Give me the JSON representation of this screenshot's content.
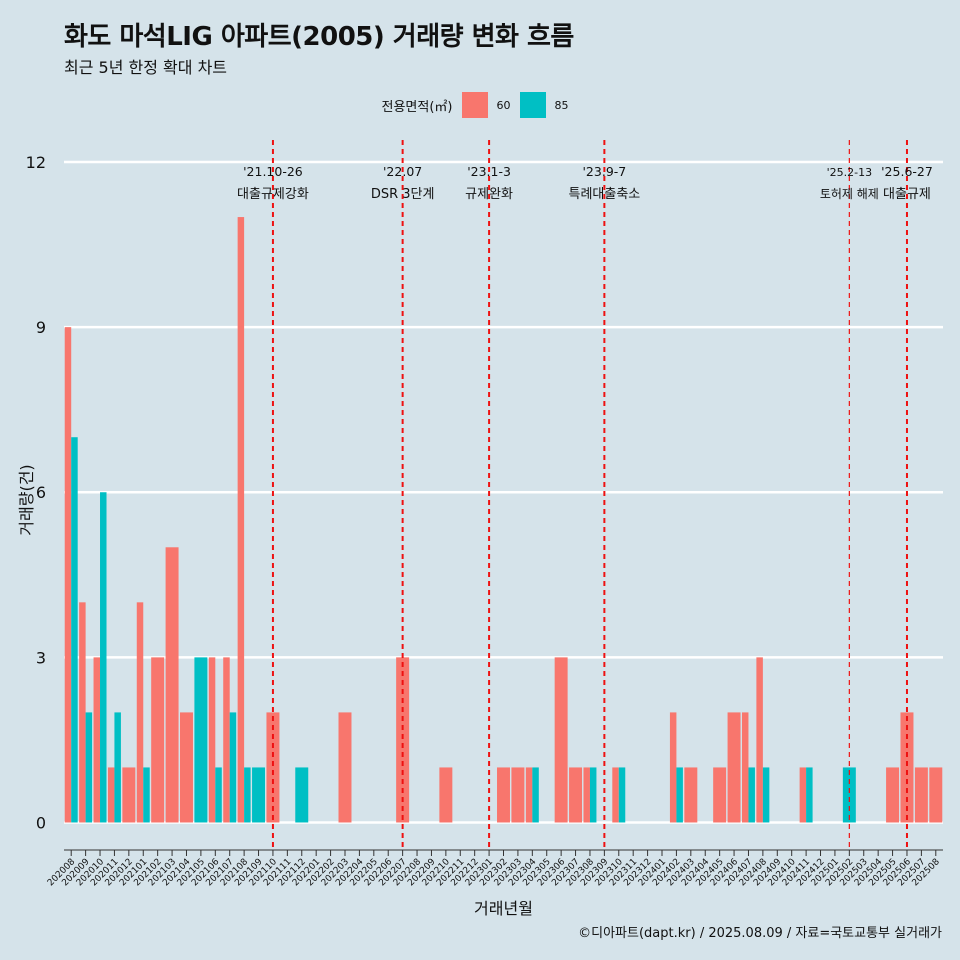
{
  "title": "화도 마석LIG 아파트(2005) 거래량 변화 흐름",
  "subtitle": "최근 5년 한정 확대 차트",
  "caption": "©디아파트(dapt.kr) / 2025.08.09 / 자료=국토교통부 실거래가",
  "legend": {
    "title": "전용면적(㎡)",
    "items": [
      {
        "label": "60",
        "color": "#f8766d"
      },
      {
        "label": "85",
        "color": "#00bfc4"
      }
    ]
  },
  "chart_data": {
    "type": "bar",
    "xlabel": "거래년월",
    "ylabel": "거래량(건)",
    "ylim": [
      -0.5,
      12.4
    ],
    "yticks": [
      0,
      3,
      6,
      9,
      12
    ],
    "grid": true,
    "legend_position": "top",
    "categories": [
      "202008",
      "202009",
      "202010",
      "202011",
      "202012",
      "202101",
      "202102",
      "202103",
      "202104",
      "202105",
      "202106",
      "202107",
      "202108",
      "202109",
      "202110",
      "202111",
      "202112",
      "202201",
      "202202",
      "202203",
      "202204",
      "202205",
      "202206",
      "202207",
      "202208",
      "202209",
      "202210",
      "202211",
      "202212",
      "202301",
      "202302",
      "202303",
      "202304",
      "202305",
      "202306",
      "202307",
      "202308",
      "202309",
      "202310",
      "202311",
      "202312",
      "202401",
      "202402",
      "202403",
      "202404",
      "202405",
      "202406",
      "202407",
      "202408",
      "202409",
      "202410",
      "202411",
      "202412",
      "202501",
      "202502",
      "202503",
      "202504",
      "202505",
      "202506",
      "202507",
      "202508"
    ],
    "series": [
      {
        "name": "60",
        "color": "#f8766d",
        "values": [
          9,
          4,
          3,
          1,
          1,
          4,
          3,
          5,
          2,
          0,
          3,
          3,
          11,
          0,
          2,
          0,
          0,
          0,
          0,
          2,
          0,
          0,
          0,
          3,
          0,
          0,
          1,
          0,
          0,
          0,
          1,
          1,
          1,
          0,
          3,
          1,
          1,
          0,
          1,
          0,
          0,
          0,
          2,
          1,
          0,
          1,
          2,
          2,
          3,
          0,
          0,
          1,
          0,
          0,
          0,
          0,
          0,
          1,
          2,
          1,
          1
        ]
      },
      {
        "name": "85",
        "color": "#00bfc4",
        "values": [
          7,
          2,
          6,
          2,
          0,
          1,
          0,
          0,
          0,
          3,
          1,
          2,
          1,
          1,
          0,
          0,
          1,
          0,
          0,
          0,
          0,
          0,
          0,
          0,
          0,
          0,
          0,
          0,
          0,
          0,
          0,
          0,
          1,
          0,
          0,
          0,
          1,
          0,
          1,
          0,
          0,
          0,
          1,
          0,
          0,
          0,
          0,
          1,
          1,
          0,
          0,
          1,
          0,
          0,
          1,
          0,
          0,
          0,
          0,
          0,
          0
        ]
      }
    ],
    "annotations": [
      {
        "x": "202110",
        "date": "'21.10-26",
        "label": "대출규제강화"
      },
      {
        "x": "202207",
        "date": "'22.07",
        "label": "DSR 3단계"
      },
      {
        "x": "202301",
        "date": "'23.1-3",
        "label": "규제완화"
      },
      {
        "x": "202309",
        "date": "'23.9-7",
        "label": "특례대출축소"
      },
      {
        "x": "202502",
        "date": "'25.2-13",
        "label": "토허제 해제"
      },
      {
        "x": "202506",
        "date": "'25.6-27",
        "label": "대출규제"
      }
    ]
  }
}
